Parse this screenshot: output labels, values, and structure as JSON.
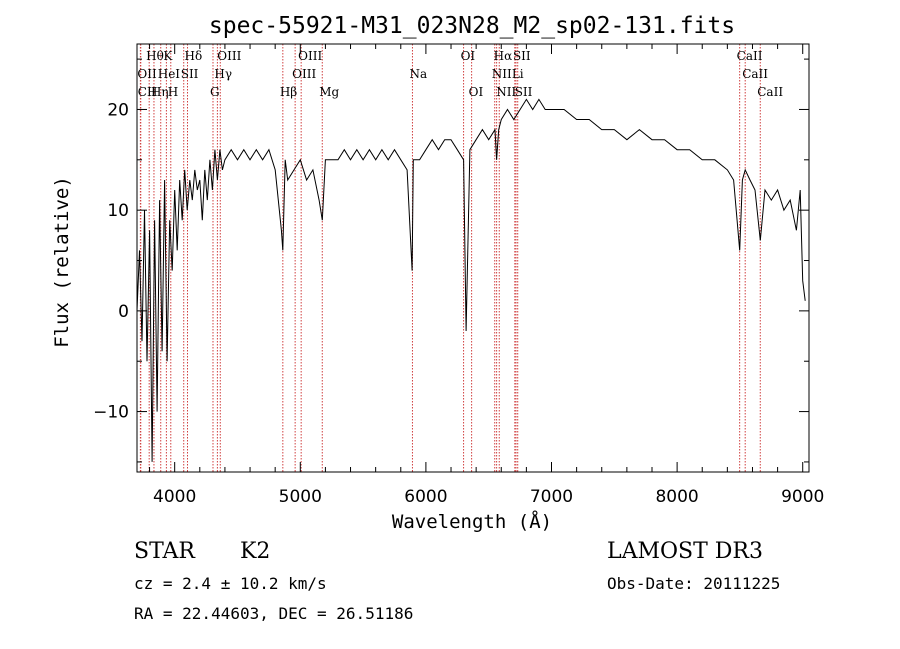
{
  "chart_data": {
    "type": "line",
    "title": "spec-55921-M31_023N28_M2_sp02-131.fits",
    "xlabel": "Wavelength (Å)",
    "ylabel": "Flux (relative)",
    "xlim": [
      3700,
      9050
    ],
    "ylim": [
      -16,
      26.5
    ],
    "xticks": [
      "4000",
      "5000",
      "6000",
      "7000",
      "8000",
      "9000"
    ],
    "yticks": [
      "−10",
      "0",
      "10",
      "20"
    ],
    "series": [
      {
        "name": "spectrum",
        "x": [
          3700,
          3720,
          3740,
          3760,
          3780,
          3800,
          3820,
          3840,
          3860,
          3880,
          3900,
          3920,
          3940,
          3960,
          3980,
          4000,
          4020,
          4040,
          4060,
          4080,
          4100,
          4120,
          4140,
          4160,
          4180,
          4200,
          4220,
          4240,
          4260,
          4280,
          4300,
          4320,
          4340,
          4360,
          4380,
          4400,
          4450,
          4500,
          4550,
          4600,
          4650,
          4700,
          4750,
          4800,
          4850,
          4861,
          4880,
          4900,
          4950,
          5000,
          5050,
          5100,
          5150,
          5175,
          5200,
          5250,
          5300,
          5350,
          5400,
          5450,
          5500,
          5550,
          5600,
          5650,
          5700,
          5750,
          5800,
          5850,
          5890,
          5900,
          5950,
          6000,
          6050,
          6100,
          6150,
          6200,
          6250,
          6300,
          6320,
          6350,
          6400,
          6450,
          6500,
          6550,
          6563,
          6580,
          6600,
          6650,
          6700,
          6750,
          6800,
          6850,
          6900,
          6950,
          7000,
          7100,
          7200,
          7300,
          7400,
          7500,
          7600,
          7700,
          7800,
          7900,
          8000,
          8100,
          8200,
          8300,
          8400,
          8450,
          8498,
          8520,
          8542,
          8580,
          8620,
          8662,
          8700,
          8750,
          8800,
          8850,
          8900,
          8950,
          8980,
          9000,
          9020
        ],
        "y": [
          0,
          6,
          -3,
          10,
          -5,
          8,
          -15,
          9,
          -10,
          11,
          -4,
          13,
          -5,
          9,
          4,
          12,
          6,
          13,
          9,
          14,
          10,
          13,
          11,
          14,
          12,
          13,
          9,
          14,
          11,
          15,
          12,
          16,
          13,
          16,
          14,
          15,
          16,
          15,
          16,
          15,
          16,
          15,
          16,
          14,
          8,
          6,
          15,
          13,
          14,
          15,
          13,
          14,
          11,
          9,
          15,
          15,
          15,
          16,
          15,
          16,
          15,
          16,
          15,
          16,
          15,
          16,
          15,
          14,
          4,
          15,
          15,
          16,
          17,
          16,
          17,
          17,
          16,
          15,
          -2,
          16,
          17,
          18,
          17,
          18,
          15,
          18,
          19,
          20,
          19,
          20,
          21,
          20,
          21,
          20,
          20,
          20,
          19,
          19,
          18,
          18,
          17,
          18,
          17,
          17,
          16,
          16,
          15,
          15,
          14,
          13,
          6,
          13,
          14,
          13,
          12,
          7,
          12,
          11,
          12,
          10,
          11,
          8,
          12,
          3,
          1
        ]
      }
    ],
    "line_markers": [
      {
        "label": "Hθ",
        "x": 3797,
        "row": 0
      },
      {
        "label": "K",
        "x": 3934,
        "row": 0
      },
      {
        "label": "Hδ",
        "x": 4102,
        "row": 0
      },
      {
        "label": "OIII",
        "x": 4363,
        "row": 0
      },
      {
        "label": "OIII",
        "x": 5007,
        "row": 0
      },
      {
        "label": "OI",
        "x": 6300,
        "row": 0
      },
      {
        "label": "Hα",
        "x": 6563,
        "row": 0
      },
      {
        "label": "SII",
        "x": 6717,
        "row": 0
      },
      {
        "label": "CaII",
        "x": 8498,
        "row": 0
      },
      {
        "label": "OII",
        "x": 3727,
        "row": 1
      },
      {
        "label": "HeI",
        "x": 3889,
        "row": 1
      },
      {
        "label": "SII",
        "x": 4072,
        "row": 1
      },
      {
        "label": "Hγ",
        "x": 4340,
        "row": 1
      },
      {
        "label": "OIII",
        "x": 4959,
        "row": 1
      },
      {
        "label": "Na",
        "x": 5893,
        "row": 1
      },
      {
        "label": "NII",
        "x": 6548,
        "row": 1
      },
      {
        "label": "Li",
        "x": 6708,
        "row": 1
      },
      {
        "label": "CaII",
        "x": 8542,
        "row": 1
      },
      {
        "label": "CH",
        "x": 3730,
        "row": 2
      },
      {
        "label": "Hη",
        "x": 3835,
        "row": 2
      },
      {
        "label": "H",
        "x": 3969,
        "row": 2
      },
      {
        "label": "G",
        "x": 4305,
        "row": 2
      },
      {
        "label": "Hβ",
        "x": 4861,
        "row": 2
      },
      {
        "label": "Mg",
        "x": 5175,
        "row": 2
      },
      {
        "label": "OI",
        "x": 6364,
        "row": 2
      },
      {
        "label": "NII",
        "x": 6584,
        "row": 2
      },
      {
        "label": "SII",
        "x": 6731,
        "row": 2
      },
      {
        "label": "CaII",
        "x": 8662,
        "row": 2
      }
    ],
    "marker_lines": [
      3727,
      3730,
      3797,
      3835,
      3889,
      3934,
      3969,
      4072,
      4102,
      4305,
      4340,
      4363,
      4861,
      4959,
      5007,
      5175,
      5893,
      6300,
      6364,
      6548,
      6563,
      6584,
      6708,
      6717,
      6731,
      8498,
      8542,
      8662
    ],
    "colors": {
      "spectrum": "#000000",
      "marker": "#d04040",
      "axes": "#000000"
    }
  },
  "info": {
    "class": "STAR",
    "subclass": "K2",
    "survey": "LAMOST DR3",
    "cz": "cz = 2.4 ± 10.2 km/s",
    "obs_date": "Obs-Date: 20111225",
    "coords": "RA =  22.44603, DEC =  26.51186"
  }
}
